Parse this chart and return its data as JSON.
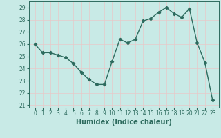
{
  "x": [
    0,
    1,
    2,
    3,
    4,
    5,
    6,
    7,
    8,
    9,
    10,
    11,
    12,
    13,
    14,
    15,
    16,
    17,
    18,
    19,
    20,
    21,
    22,
    23
  ],
  "y": [
    26.0,
    25.3,
    25.3,
    25.1,
    24.9,
    24.4,
    23.7,
    23.1,
    22.7,
    22.7,
    24.6,
    26.4,
    26.1,
    26.4,
    27.9,
    28.1,
    28.6,
    29.0,
    28.5,
    28.2,
    28.9,
    26.1,
    24.5,
    21.4
  ],
  "line_color": "#2d6b5e",
  "marker": "D",
  "markersize": 2.2,
  "linewidth": 1.0,
  "xlabel": "Humidex (Indice chaleur)",
  "ylim": [
    20.8,
    29.5
  ],
  "yticks": [
    21,
    22,
    23,
    24,
    25,
    26,
    27,
    28,
    29
  ],
  "xticks": [
    0,
    1,
    2,
    3,
    4,
    5,
    6,
    7,
    8,
    9,
    10,
    11,
    12,
    13,
    14,
    15,
    16,
    17,
    18,
    19,
    20,
    21,
    22,
    23
  ],
  "bg_color": "#c8eae6",
  "grid_color": "#e8c8c8",
  "xlabel_fontsize": 7,
  "tick_fontsize": 5.5
}
